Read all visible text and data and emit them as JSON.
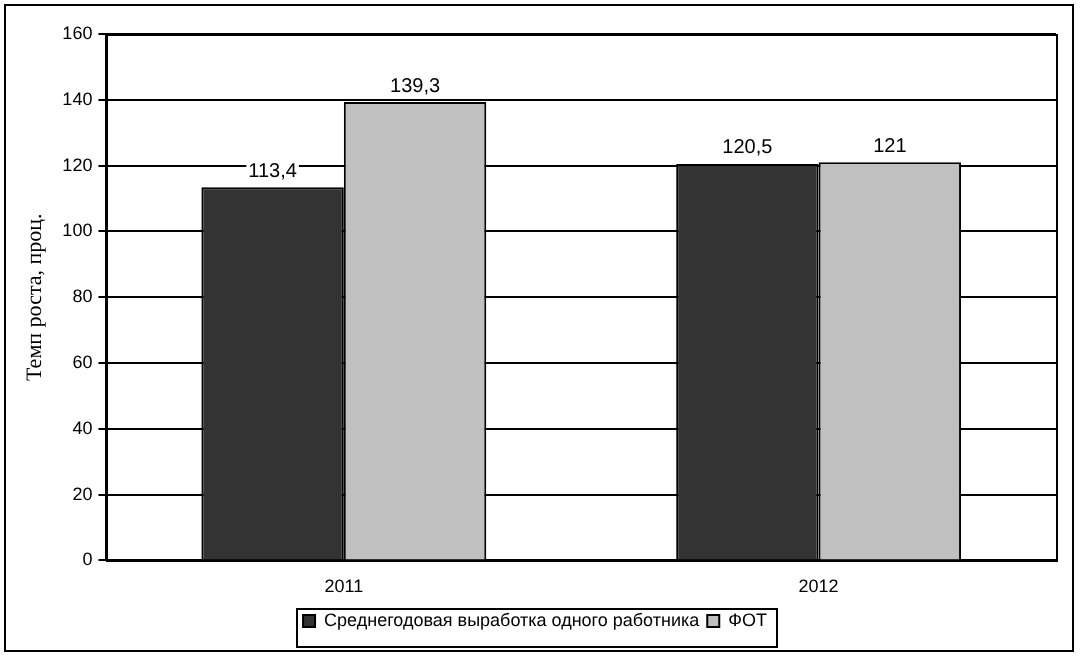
{
  "chart_data": {
    "type": "bar",
    "ylabel": "Темп роста, проц.",
    "categories": [
      "2011",
      "2012"
    ],
    "series": [
      {
        "name": "Среднегодовая выработка одного работника",
        "color": "#333333",
        "values": [
          113.4,
          120.5
        ],
        "value_labels": [
          "113,4",
          "120,5"
        ]
      },
      {
        "name": "ФОТ",
        "color": "#c0c0c0",
        "values": [
          139.3,
          121
        ],
        "value_labels": [
          "139,3",
          "121"
        ]
      }
    ],
    "ylim": [
      0,
      160
    ],
    "yticks": [
      0,
      20,
      40,
      60,
      80,
      100,
      120,
      140,
      160
    ],
    "grid": "y",
    "legend": "bottom"
  }
}
